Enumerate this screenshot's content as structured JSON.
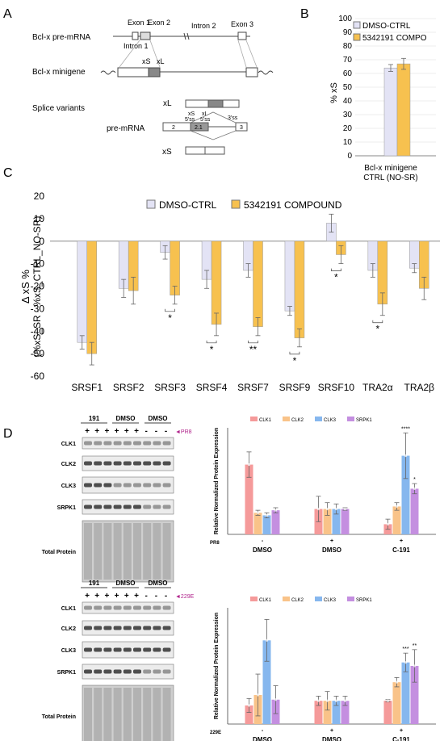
{
  "panels": {
    "A": "A",
    "B": "B",
    "C": "C",
    "D": "D"
  },
  "panelA": {
    "premrna_label": "Bcl-x pre-mRNA",
    "minigene_label": "Bcl-x minigene",
    "splice_label": "Splice variants",
    "premrna2_label": "pre-mRNA",
    "exon1": "Exon 1",
    "exon2": "Exon 2",
    "exon3": "Exon 3",
    "intron1": "Intron 1",
    "intron2": "Intron 2",
    "xs": "xS",
    "xl": "xL",
    "ss_xs": "xS",
    "ss_xs2": "5'ss",
    "ss_xl": "xL",
    "ss_xl2": "5'ss",
    "ss3": "3'ss",
    "ex2": "2",
    "ex21": "2.1",
    "ex3": "3"
  },
  "colors": {
    "dmso": "#e3e3f5",
    "compound": "#f7c14f",
    "clk1": "#f59a9a",
    "clk2": "#f9c389",
    "clk3": "#86b7ee",
    "srpk1": "#c48fe0"
  },
  "panelB": {
    "chart_data": {
      "type": "bar",
      "categories": [
        "Bcl-x minigene CTRL (NO-SR)"
      ],
      "series": [
        {
          "name": "DMSO-CTRL",
          "values": [
            64
          ],
          "err": [
            2.5
          ]
        },
        {
          "name": "5342191 COMPO",
          "values": [
            67
          ],
          "err": [
            4
          ]
        }
      ],
      "ylabel": "% xS",
      "ylim": [
        0,
        100
      ],
      "yticks": [
        0,
        10,
        20,
        30,
        40,
        50,
        60,
        70,
        80,
        90,
        100
      ],
      "xlabel_lines": [
        "Bcl-x minigene",
        "CTRL (NO-SR)"
      ],
      "legend": "top-right"
    }
  },
  "panelC": {
    "chart_data": {
      "type": "bar",
      "categories": [
        "SRSF1",
        "SRSF2",
        "SRSF3",
        "SRSF4",
        "SRSF7",
        "SRSF9",
        "SRSF10",
        "TRA2α",
        "TRA2β"
      ],
      "series": [
        {
          "name": "DMSO-CTRL",
          "values": [
            -45,
            -21,
            -5,
            -17,
            -13,
            -31,
            8,
            -13,
            -12
          ],
          "err": [
            3,
            4,
            3,
            4,
            3,
            2,
            4,
            3,
            2
          ]
        },
        {
          "name": "5342191 COMPOUND",
          "values": [
            -50,
            -22,
            -24,
            -37,
            -38,
            -43,
            -6,
            -28,
            -21
          ],
          "err": [
            5,
            6,
            4,
            5,
            4,
            4,
            4,
            5,
            5
          ]
        }
      ],
      "ylabel_lines": [
        "Δ xS %",
        "(%xS_SR - %xS_CTRL_NO-SR)"
      ],
      "ylim": [
        -60,
        20
      ],
      "yticks": [
        20,
        10,
        0,
        -10,
        -20,
        -30,
        -40,
        -50,
        -60
      ],
      "significance": [
        {
          "cat": 2,
          "mark": "*"
        },
        {
          "cat": 3,
          "mark": "*"
        },
        {
          "cat": 4,
          "mark": "**"
        },
        {
          "cat": 5,
          "mark": "*"
        },
        {
          "cat": 6,
          "mark": "*"
        },
        {
          "cat": 7,
          "mark": "*"
        }
      ],
      "legend": "top"
    }
  },
  "blots": [
    {
      "groups": [
        "191",
        "DMSO",
        "DMSO"
      ],
      "signs": [
        "+",
        "+",
        "+",
        "+",
        "+",
        "+",
        "-",
        "-",
        "-"
      ],
      "marker": "PR8",
      "rows": [
        "CLK1",
        "CLK2",
        "CLK3",
        "SRPK1",
        "Total Protein"
      ]
    },
    {
      "groups": [
        "191",
        "DMSO",
        "DMSO"
      ],
      "signs": [
        "+",
        "+",
        "+",
        "+",
        "+",
        "+",
        "-",
        "-",
        "-"
      ],
      "marker": "229E",
      "rows": [
        "CLK1",
        "CLK2",
        "CLK3",
        "SRPK1",
        "Total Protein"
      ]
    }
  ],
  "panelD1": {
    "chart_data": {
      "type": "bar",
      "legend_items": [
        "CLK1",
        "CLK2",
        "CLK3",
        "SRPK1"
      ],
      "categories": [
        "DMSO",
        "DMSO",
        "C-191"
      ],
      "virus": "PR8",
      "virus_signs": [
        "-",
        "+",
        "+"
      ],
      "series": [
        {
          "name": "CLK1",
          "values": [
            2.75,
            1.0,
            0.4
          ],
          "err": [
            0.5,
            0.5,
            0.2
          ]
        },
        {
          "name": "CLK2",
          "values": [
            0.85,
            1.0,
            1.1
          ],
          "err": [
            0.1,
            0.25,
            0.15
          ]
        },
        {
          "name": "CLK3",
          "values": [
            0.75,
            1.0,
            3.1
          ],
          "err": [
            0.1,
            0.2,
            0.9
          ]
        },
        {
          "name": "SRPK1",
          "values": [
            0.95,
            1.0,
            1.8
          ],
          "err": [
            0.1,
            0.05,
            0.2
          ]
        }
      ],
      "ylabel": "Relative Normalized Protein Expression",
      "ylim": [
        0,
        4.2
      ],
      "sig": [
        {
          "cat": 2,
          "series": 2,
          "mark": "****"
        },
        {
          "cat": 2,
          "series": 3,
          "mark": "*"
        }
      ]
    }
  },
  "panelD2": {
    "chart_data": {
      "type": "bar",
      "legend_items": [
        "CLK1",
        "CLK2",
        "CLK3",
        "SRPK1"
      ],
      "categories": [
        "DMSO",
        "DMSO",
        "C-191"
      ],
      "virus": "229E",
      "virus_signs": [
        "-",
        "+",
        "+"
      ],
      "series": [
        {
          "name": "CLK1",
          "values": [
            0.8,
            1.0,
            1.0
          ],
          "err": [
            0.3,
            0.2,
            0.05
          ]
        },
        {
          "name": "CLK2",
          "values": [
            1.25,
            1.0,
            1.8
          ],
          "err": [
            0.9,
            0.4,
            0.2
          ]
        },
        {
          "name": "CLK3",
          "values": [
            3.6,
            1.0,
            2.65
          ],
          "err": [
            0.9,
            0.2,
            0.4
          ]
        },
        {
          "name": "SRPK1",
          "values": [
            1.05,
            1.0,
            2.5
          ],
          "err": [
            0.6,
            0.2,
            0.7
          ]
        }
      ],
      "ylabel": "Relative Normalized Protein Expression",
      "ylim": [
        0,
        5
      ],
      "sig": [
        {
          "cat": 2,
          "series": 2,
          "mark": "***"
        },
        {
          "cat": 2,
          "series": 3,
          "mark": "**"
        }
      ]
    }
  }
}
